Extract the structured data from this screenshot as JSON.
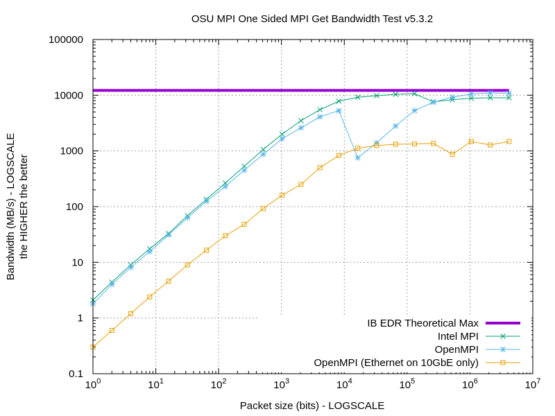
{
  "chart_data": {
    "type": "line",
    "title": "OSU MPI One Sided MPI Get Bandwidth Test v5.3.2",
    "xlabel": "Packet size (bits) - LOGSCALE",
    "ylabel_lines": [
      "Bandwidth (MB/s) - LOGSCALE",
      "the HIGHER the better"
    ],
    "x_scale": "log",
    "y_scale": "log",
    "xlim": [
      1,
      10000000
    ],
    "ylim": [
      0.1,
      100000
    ],
    "grid": true,
    "legend_position": "bottom-right",
    "x_ticks": [
      {
        "base": "10",
        "exp": "0"
      },
      {
        "base": "10",
        "exp": "1"
      },
      {
        "base": "10",
        "exp": "2"
      },
      {
        "base": "10",
        "exp": "3"
      },
      {
        "base": "10",
        "exp": "4"
      },
      {
        "base": "10",
        "exp": "5"
      },
      {
        "base": "10",
        "exp": "6"
      },
      {
        "base": "10",
        "exp": "7"
      }
    ],
    "y_ticks": [
      "0.1",
      "1",
      "10",
      "100",
      "1000",
      "10000",
      "100000"
    ],
    "x": [
      1,
      2,
      4,
      8,
      16,
      32,
      64,
      128,
      256,
      512,
      1024,
      2048,
      4096,
      8192,
      16384,
      32768,
      65536,
      131072,
      262144,
      524288,
      1048576,
      2097152,
      4194304
    ],
    "series": [
      {
        "name": "IB EDR Theoretical Max",
        "color": "#9400d3",
        "marker": "none",
        "x": [
          1,
          4194304
        ],
        "values": [
          12200,
          12200
        ]
      },
      {
        "name": "Intel MPI",
        "color": "#009e73",
        "marker": "x",
        "values": [
          2.1,
          4.4,
          9.0,
          17.5,
          33,
          69,
          135,
          265,
          530,
          1060,
          2000,
          3500,
          5500,
          7800,
          9200,
          9800,
          10400,
          10600,
          7600,
          8300,
          8800,
          9000,
          9000
        ]
      },
      {
        "name": "OpenMPI",
        "color": "#56b4e9",
        "marker": "star",
        "values": [
          1.8,
          4.0,
          8.1,
          15.5,
          31,
          63,
          125,
          230,
          450,
          870,
          1650,
          2600,
          4100,
          5300,
          750,
          1400,
          2800,
          5300,
          7500,
          9200,
          10500,
          11000,
          10800
        ]
      },
      {
        "name": "OpenMPI (Ethernet on 10GbE only)",
        "color": "#e69f00",
        "marker": "square",
        "values": [
          0.3,
          0.6,
          1.2,
          2.4,
          4.6,
          9.0,
          16.5,
          30,
          48,
          92,
          160,
          250,
          500,
          830,
          1120,
          1250,
          1320,
          1330,
          1360,
          870,
          1480,
          1280,
          1480
        ]
      }
    ]
  }
}
